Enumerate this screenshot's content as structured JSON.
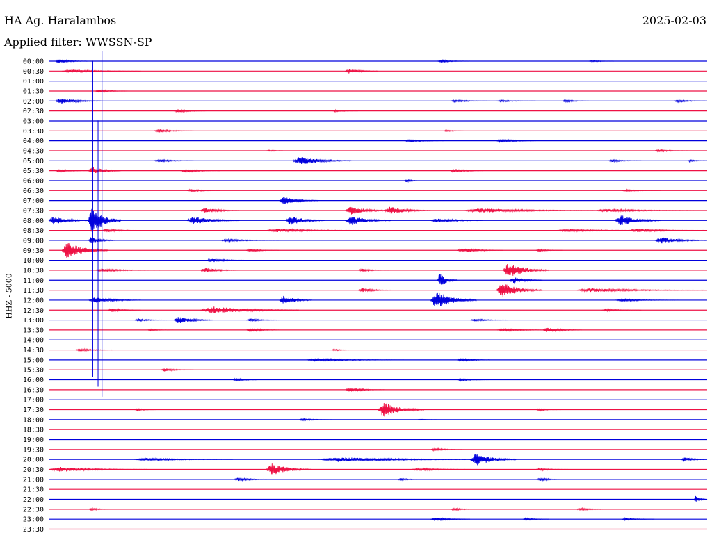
{
  "header": {
    "station": "HA Ag. Haralambos",
    "date": "2025-02-03",
    "filter": "Applied filter: WWSSN-SP"
  },
  "colors": {
    "blue": "#0000dd",
    "red": "#ee1144"
  },
  "chart_data": {
    "type": "line",
    "title": "HA Ag. Haralambos",
    "subtitle": "Applied filter: WWSSN-SP",
    "ylabel": "HHZ - 5000",
    "xlabel": "",
    "date": "2025-02-03",
    "trace_minutes": 30,
    "series_colors": [
      "blue",
      "red"
    ],
    "rows": [
      {
        "time": "00:00",
        "events": [
          [
            0.01,
            0.4,
            0.05
          ],
          [
            0.59,
            0.25,
            0.05
          ],
          [
            0.82,
            0.2,
            0.04
          ]
        ]
      },
      {
        "time": "00:30",
        "events": [
          [
            0.02,
            0.3,
            0.12
          ],
          [
            0.45,
            0.5,
            0.05
          ]
        ]
      },
      {
        "time": "01:00",
        "events": []
      },
      {
        "time": "01:30",
        "events": [
          [
            0.07,
            0.35,
            0.05
          ]
        ]
      },
      {
        "time": "02:00",
        "events": [
          [
            0.01,
            0.6,
            0.07
          ],
          [
            0.61,
            0.25,
            0.06
          ],
          [
            0.68,
            0.2,
            0.06
          ],
          [
            0.78,
            0.3,
            0.04
          ],
          [
            0.95,
            0.25,
            0.05
          ]
        ]
      },
      {
        "time": "02:30",
        "events": [
          [
            0.19,
            0.35,
            0.05
          ],
          [
            0.43,
            0.2,
            0.04
          ]
        ]
      },
      {
        "time": "03:00",
        "events": []
      },
      {
        "time": "03:30",
        "events": [
          [
            0.16,
            0.35,
            0.06
          ],
          [
            0.6,
            0.2,
            0.03
          ]
        ]
      },
      {
        "time": "04:00",
        "events": [
          [
            0.54,
            0.3,
            0.06
          ],
          [
            0.68,
            0.4,
            0.06
          ]
        ]
      },
      {
        "time": "04:30",
        "events": [
          [
            0.33,
            0.15,
            0.04
          ],
          [
            0.92,
            0.3,
            0.05
          ]
        ]
      },
      {
        "time": "05:00",
        "events": [
          [
            0.16,
            0.3,
            0.06
          ],
          [
            0.37,
            0.9,
            0.09
          ],
          [
            0.85,
            0.25,
            0.05
          ],
          [
            0.97,
            0.25,
            0.03
          ]
        ]
      },
      {
        "time": "05:30",
        "events": [
          [
            0.01,
            0.3,
            0.05
          ],
          [
            0.06,
            0.9,
            0.05
          ],
          [
            0.2,
            0.35,
            0.06
          ],
          [
            0.61,
            0.4,
            0.05
          ]
        ]
      },
      {
        "time": "06:00",
        "events": [
          [
            0.54,
            0.5,
            0.02
          ]
        ]
      },
      {
        "time": "06:30",
        "events": [
          [
            0.21,
            0.3,
            0.05
          ],
          [
            0.87,
            0.2,
            0.06
          ]
        ]
      },
      {
        "time": "07:00",
        "events": [
          [
            0.35,
            0.8,
            0.06
          ]
        ]
      },
      {
        "time": "07:30",
        "events": [
          [
            0.23,
            0.6,
            0.06
          ],
          [
            0.45,
            0.9,
            0.07
          ],
          [
            0.51,
            0.8,
            0.07
          ],
          [
            0.63,
            0.5,
            0.2
          ],
          [
            0.83,
            0.35,
            0.15
          ]
        ]
      },
      {
        "time": "08:00",
        "events": [
          [
            0.0,
            0.9,
            0.06
          ],
          [
            0.06,
            3.0,
            0.05
          ],
          [
            0.21,
            0.9,
            0.08
          ],
          [
            0.36,
            1.0,
            0.06
          ],
          [
            0.45,
            1.1,
            0.07
          ],
          [
            0.58,
            0.5,
            0.08
          ],
          [
            0.86,
            1.2,
            0.07
          ]
        ]
      },
      {
        "time": "08:30",
        "events": [
          [
            0.08,
            0.4,
            0.06
          ],
          [
            0.33,
            0.4,
            0.15
          ],
          [
            0.77,
            0.3,
            0.15
          ],
          [
            0.88,
            0.4,
            0.12
          ]
        ]
      },
      {
        "time": "09:00",
        "events": [
          [
            0.06,
            0.8,
            0.04
          ],
          [
            0.26,
            0.25,
            0.1
          ],
          [
            0.92,
            0.7,
            0.08
          ]
        ]
      },
      {
        "time": "09:30",
        "events": [
          [
            0.02,
            1.8,
            0.07
          ],
          [
            0.3,
            0.3,
            0.05
          ],
          [
            0.62,
            0.45,
            0.07
          ],
          [
            0.74,
            0.25,
            0.04
          ]
        ]
      },
      {
        "time": "10:00",
        "events": [
          [
            0.24,
            0.45,
            0.06
          ]
        ]
      },
      {
        "time": "10:30",
        "events": [
          [
            0.07,
            0.3,
            0.1
          ],
          [
            0.23,
            0.5,
            0.06
          ],
          [
            0.47,
            0.3,
            0.05
          ],
          [
            0.69,
            1.7,
            0.07
          ]
        ]
      },
      {
        "time": "11:00",
        "events": [
          [
            0.59,
            1.5,
            0.03
          ],
          [
            0.7,
            0.7,
            0.05
          ]
        ]
      },
      {
        "time": "11:30",
        "events": [
          [
            0.47,
            0.45,
            0.05
          ],
          [
            0.68,
            1.6,
            0.07
          ],
          [
            0.8,
            0.4,
            0.2
          ]
        ]
      },
      {
        "time": "12:00",
        "events": [
          [
            0.06,
            0.6,
            0.08
          ],
          [
            0.35,
            1.0,
            0.05
          ],
          [
            0.58,
            2.0,
            0.07
          ],
          [
            0.86,
            0.25,
            0.1
          ]
        ]
      },
      {
        "time": "12:30",
        "events": [
          [
            0.09,
            0.4,
            0.05
          ],
          [
            0.23,
            0.8,
            0.15
          ],
          [
            0.84,
            0.25,
            0.06
          ]
        ]
      },
      {
        "time": "13:00",
        "events": [
          [
            0.13,
            0.25,
            0.05
          ],
          [
            0.19,
            0.8,
            0.06
          ],
          [
            0.3,
            0.3,
            0.05
          ],
          [
            0.64,
            0.25,
            0.06
          ]
        ]
      },
      {
        "time": "13:30",
        "events": [
          [
            0.15,
            0.2,
            0.04
          ],
          [
            0.3,
            0.45,
            0.05
          ],
          [
            0.68,
            0.3,
            0.08
          ],
          [
            0.75,
            0.55,
            0.06
          ]
        ]
      },
      {
        "time": "14:00",
        "events": []
      },
      {
        "time": "14:30",
        "events": [
          [
            0.04,
            0.3,
            0.06
          ],
          [
            0.43,
            0.2,
            0.03
          ]
        ]
      },
      {
        "time": "15:00",
        "events": [
          [
            0.39,
            0.3,
            0.15
          ],
          [
            0.62,
            0.4,
            0.05
          ]
        ]
      },
      {
        "time": "15:30",
        "events": [
          [
            0.17,
            0.35,
            0.05
          ]
        ]
      },
      {
        "time": "16:00",
        "events": [
          [
            0.28,
            0.35,
            0.04
          ],
          [
            0.62,
            0.25,
            0.05
          ]
        ]
      },
      {
        "time": "16:30",
        "events": [
          [
            0.45,
            0.45,
            0.06
          ]
        ]
      },
      {
        "time": "17:00",
        "events": []
      },
      {
        "time": "17:30",
        "events": [
          [
            0.13,
            0.2,
            0.04
          ],
          [
            0.5,
            1.6,
            0.07
          ],
          [
            0.74,
            0.25,
            0.04
          ]
        ]
      },
      {
        "time": "18:00",
        "events": [
          [
            0.38,
            0.25,
            0.05
          ],
          [
            0.56,
            0.15,
            0.03
          ]
        ]
      },
      {
        "time": "18:30",
        "events": []
      },
      {
        "time": "19:00",
        "events": []
      },
      {
        "time": "19:30",
        "events": [
          [
            0.58,
            0.3,
            0.05
          ]
        ]
      },
      {
        "time": "20:00",
        "events": [
          [
            0.13,
            0.3,
            0.15
          ],
          [
            0.41,
            0.5,
            0.25
          ],
          [
            0.64,
            1.4,
            0.07
          ],
          [
            0.96,
            0.5,
            0.04
          ]
        ]
      },
      {
        "time": "20:30",
        "events": [
          [
            0.0,
            0.5,
            0.15
          ],
          [
            0.33,
            1.3,
            0.07
          ],
          [
            0.55,
            0.3,
            0.1
          ],
          [
            0.74,
            0.3,
            0.05
          ]
        ]
      },
      {
        "time": "21:00",
        "events": [
          [
            0.28,
            0.35,
            0.06
          ],
          [
            0.53,
            0.25,
            0.04
          ],
          [
            0.74,
            0.3,
            0.05
          ]
        ]
      },
      {
        "time": "21:30",
        "events": []
      },
      {
        "time": "22:00",
        "events": [
          [
            0.98,
            0.8,
            0.02
          ]
        ]
      },
      {
        "time": "22:30",
        "events": [
          [
            0.06,
            0.25,
            0.04
          ],
          [
            0.61,
            0.3,
            0.04
          ],
          [
            0.8,
            0.25,
            0.06
          ]
        ]
      },
      {
        "time": "23:00",
        "events": [
          [
            0.58,
            0.45,
            0.06
          ],
          [
            0.72,
            0.25,
            0.04
          ],
          [
            0.87,
            0.25,
            0.05
          ]
        ]
      },
      {
        "time": "23:30",
        "events": []
      }
    ],
    "spikes": [
      {
        "start_row": 1,
        "end_row": 31,
        "x": 0.067
      },
      {
        "start_row": 0,
        "end_row": 33,
        "x": 0.081
      },
      {
        "start_row": 7,
        "end_row": 32,
        "x": 0.075
      }
    ]
  }
}
